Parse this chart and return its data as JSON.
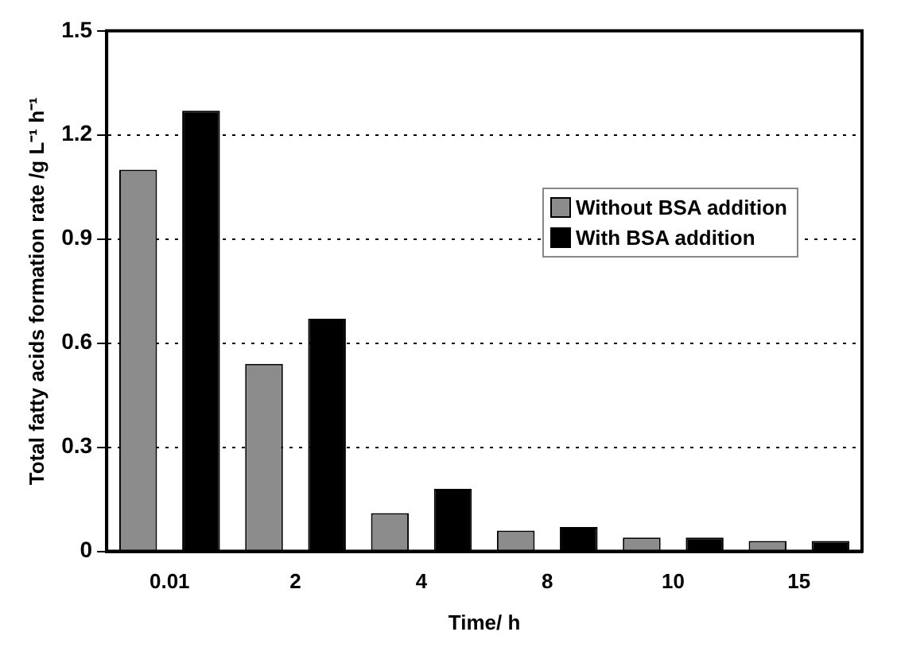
{
  "chart_data": {
    "type": "bar",
    "xlabel": "Time/ h",
    "ylabel": "Total fatty acids formation rate /g L⁻¹ h⁻¹",
    "categories": [
      "0.01",
      "2",
      "4",
      "8",
      "10",
      "15"
    ],
    "series": [
      {
        "name": "Without BSA addition",
        "color": "#8c8c8c",
        "values": [
          1.1,
          0.54,
          0.11,
          0.06,
          0.04,
          0.03
        ]
      },
      {
        "name": "With BSA addition",
        "color": "#000000",
        "values": [
          1.27,
          0.67,
          0.18,
          0.07,
          0.04,
          0.03
        ]
      }
    ],
    "ylim": [
      0,
      1.5
    ],
    "yticks": [
      0,
      0.3,
      0.6,
      0.9,
      1.2,
      1.5
    ],
    "grid": "y",
    "legend": "top right"
  }
}
